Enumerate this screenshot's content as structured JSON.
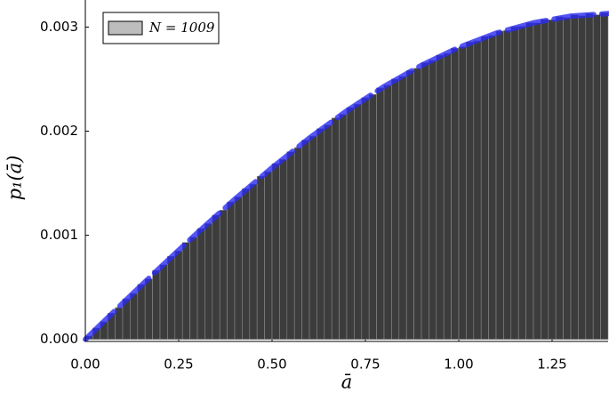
{
  "chart_data": [
    {
      "type": "histogram",
      "xlabel": "ā",
      "ylabel": "p₁(ā)",
      "xlim": [
        0,
        1.4
      ],
      "ylim": [
        -2e-05,
        0.00326
      ],
      "xticks": [
        {
          "value": 0,
          "label": "0.00"
        },
        {
          "value": 0.25,
          "label": "0.25"
        },
        {
          "value": 0.5,
          "label": "0.50"
        },
        {
          "value": 0.75,
          "label": "0.75"
        },
        {
          "value": 1,
          "label": "1.00"
        },
        {
          "value": 1.25,
          "label": "1.25"
        }
      ],
      "yticks": [
        {
          "value": 0,
          "label": "0.000"
        },
        {
          "value": 0.001,
          "label": "0.001"
        },
        {
          "value": 0.002,
          "label": "0.002"
        },
        {
          "value": 0.003,
          "label": "0.003"
        }
      ],
      "legend": "upper left",
      "bins": [
        0,
        0.02,
        0.04,
        0.06,
        0.08,
        0.1,
        0.12,
        0.14,
        0.16,
        0.18,
        0.2,
        0.22,
        0.24,
        0.26,
        0.28,
        0.3,
        0.32,
        0.34,
        0.36,
        0.38,
        0.4,
        0.42,
        0.44,
        0.46,
        0.48,
        0.5,
        0.52,
        0.54,
        0.56,
        0.58,
        0.6,
        0.62,
        0.64,
        0.66,
        0.68,
        0.7,
        0.72,
        0.74,
        0.76,
        0.78,
        0.8,
        0.82,
        0.84,
        0.86,
        0.88,
        0.9,
        0.92,
        0.94,
        0.96,
        0.98,
        1,
        1.02,
        1.04,
        1.06,
        1.08,
        1.1,
        1.12,
        1.14,
        1.16,
        1.18,
        1.2,
        1.22,
        1.24,
        1.26,
        1.28,
        1.3,
        1.32,
        1.34,
        1.36,
        1.38,
        1.4
      ],
      "series": [
        {
          "name": "N = 1009",
          "color": "#3c3c3c",
          "values": [
            3.3e-05,
            0.000108,
            0.000168,
            0.00025,
            0.000305,
            0.000389,
            0.000441,
            0.000527,
            0.00058,
            0.000662,
            0.000716,
            0.000798,
            0.000849,
            0.000931,
            0.000982,
            0.001064,
            0.001112,
            0.001193,
            0.001241,
            0.00132,
            0.001368,
            0.001446,
            0.00149,
            0.001567,
            0.001611,
            0.001688,
            0.001728,
            0.001802,
            0.001842,
            0.001914,
            0.001952,
            0.002023,
            0.002058,
            0.002126,
            0.002161,
            0.002227,
            0.002258,
            0.002321,
            0.002352,
            0.002415,
            0.002441,
            0.0025,
            0.002525,
            0.002582,
            0.002604,
            0.002658,
            0.002679,
            0.00273,
            0.002747,
            0.002796,
            0.00281,
            0.002855,
            0.002867,
            0.00291,
            0.00292,
            0.002961,
            0.002966,
            0.003003,
            0.003007,
            0.003041,
            0.00304,
            0.003072,
            0.003069,
            0.003098,
            0.003091,
            0.003117,
            0.003108,
            0.00313,
            0.003118,
            0.003137
          ]
        }
      ]
    },
    {
      "type": "line",
      "color": "#2b2bf0",
      "x": [
        0,
        0.1,
        0.2,
        0.3,
        0.4,
        0.5,
        0.6,
        0.7,
        0.8,
        0.9,
        1,
        1.1,
        1.2,
        1.3,
        1.4
      ],
      "values": [
        0,
        0.000347,
        0.000689,
        0.001023,
        0.001345,
        0.001648,
        0.001934,
        0.002195,
        0.002429,
        0.002632,
        0.002804,
        0.002941,
        0.003041,
        0.003105,
        0.00313
      ]
    }
  ]
}
